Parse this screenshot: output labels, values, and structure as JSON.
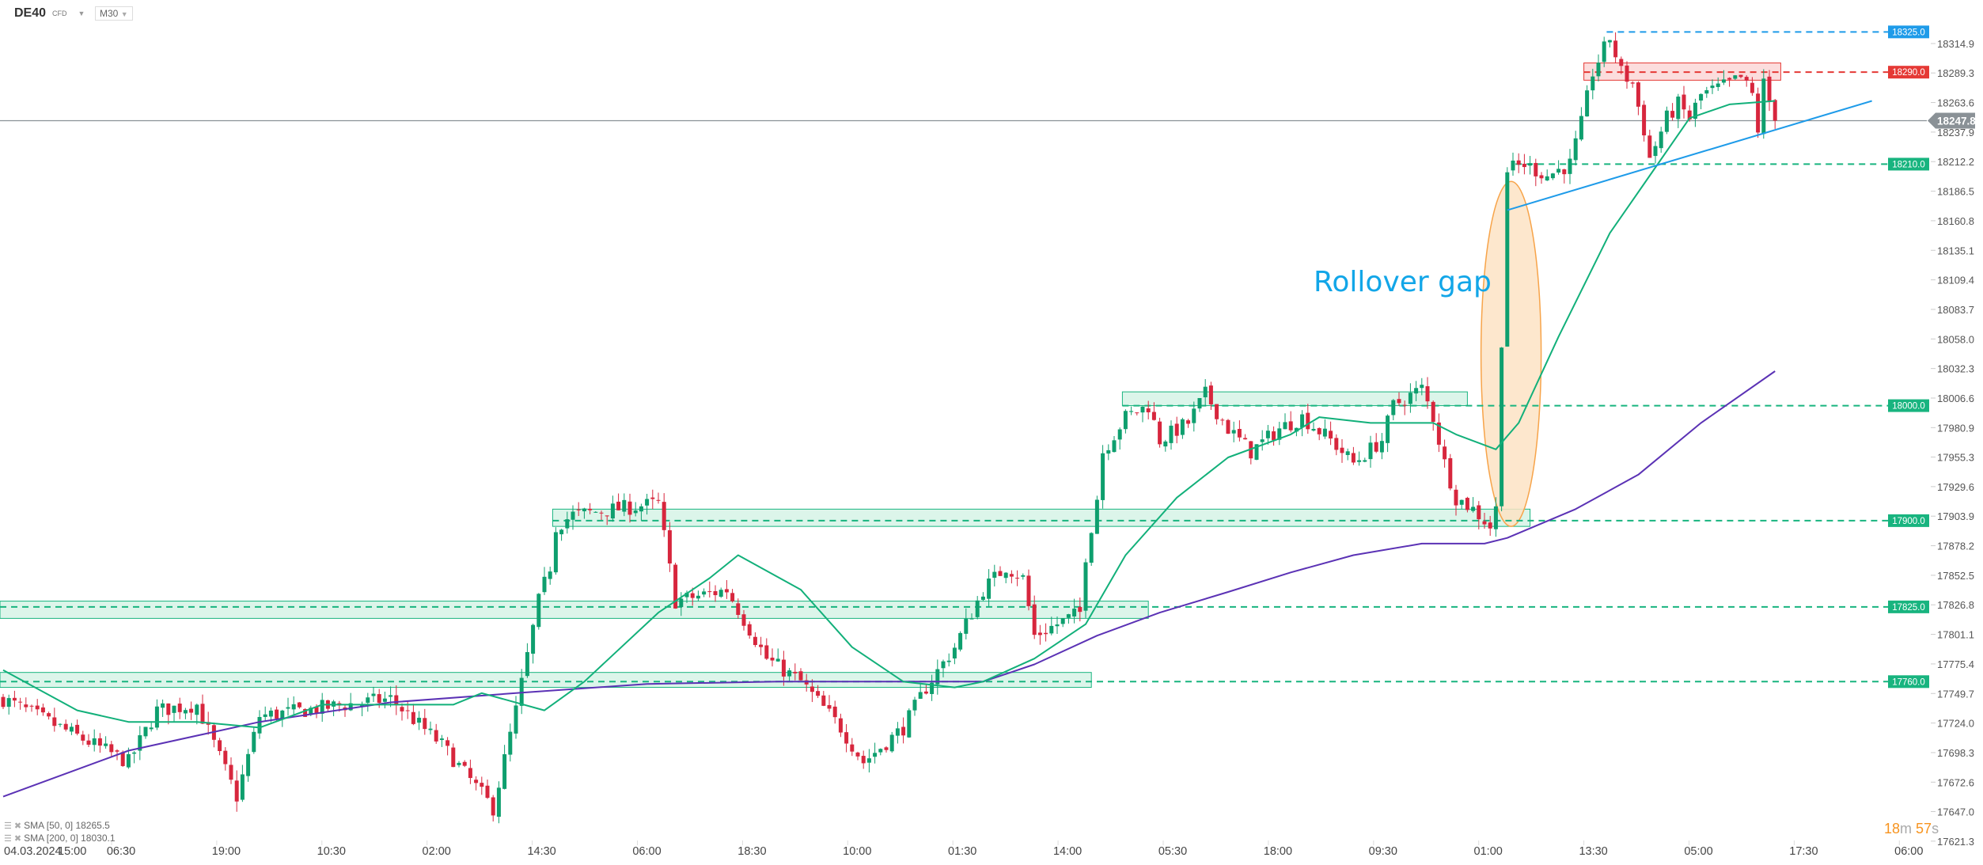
{
  "header": {
    "symbol": "DE40",
    "symbol_type": "CFD",
    "timeframe": "M30"
  },
  "legend": [
    {
      "label": "SMA [50,  0] 18265.5"
    },
    {
      "label": "SMA [200,  0] 18030.1"
    }
  ],
  "timer": {
    "minutes": "18",
    "m": "m",
    "seconds": "57",
    "s": "s"
  },
  "annotation": {
    "text": "Rollover gap",
    "color": "#12a6e8"
  },
  "colors": {
    "up": "#0e9f6e",
    "down": "#d7263d",
    "sma50": "#12b07a",
    "sma200": "#5b32b5",
    "zone": "#18b47f",
    "resistance": "#e53935",
    "high": "#1e9be9",
    "current": "#8a9196",
    "ellipse": "#f7a44a"
  },
  "chart_data": {
    "type": "candlestick",
    "instrument": "DE40",
    "timeframe": "M30",
    "y_ticks": [
      "18314.9",
      "18289.3",
      "18263.6",
      "18237.9",
      "18212.2",
      "18186.5",
      "18160.8",
      "18135.1",
      "18109.4",
      "18083.7",
      "18058.0",
      "18032.3",
      "18006.6",
      "17980.9",
      "17955.3",
      "17929.6",
      "17903.9",
      "17878.2",
      "17852.5",
      "17826.8",
      "17801.1",
      "17775.4",
      "17749.7",
      "17724.0",
      "17698.3",
      "17672.6",
      "17647.0",
      "17621.3"
    ],
    "x_start_label": {
      "date": "04.03.2024",
      "time": "15:00"
    },
    "x_ticks": [
      "06:30",
      "19:00",
      "10:30",
      "02:00",
      "14:30",
      "06:00",
      "18:30",
      "10:00",
      "01:30",
      "14:00",
      "05:30",
      "18:00",
      "09:30",
      "01:00",
      "13:30",
      "05:00",
      "17:30",
      "06:00"
    ],
    "current_price": "18247.8",
    "price_path": [
      [
        0,
        17745
      ],
      [
        22,
        17690
      ],
      [
        27,
        17735
      ],
      [
        34,
        17740
      ],
      [
        41,
        17660
      ],
      [
        45,
        17730
      ],
      [
        68,
        17745
      ],
      [
        77,
        17705
      ],
      [
        86,
        17650
      ],
      [
        90,
        17735
      ],
      [
        94,
        17830
      ],
      [
        96,
        17860
      ],
      [
        97,
        17895
      ],
      [
        100,
        17905
      ],
      [
        115,
        17915
      ],
      [
        118,
        17830
      ],
      [
        127,
        17840
      ],
      [
        134,
        17780
      ],
      [
        140,
        17760
      ],
      [
        147,
        17720
      ],
      [
        151,
        17690
      ],
      [
        158,
        17720
      ],
      [
        162,
        17755
      ],
      [
        167,
        17790
      ],
      [
        172,
        17840
      ],
      [
        176,
        17860
      ],
      [
        179,
        17850
      ],
      [
        181,
        17800
      ],
      [
        185,
        17810
      ],
      [
        189,
        17820
      ],
      [
        190,
        17870
      ],
      [
        192,
        17920
      ],
      [
        193,
        17960
      ],
      [
        197,
        17990
      ],
      [
        201,
        18000
      ],
      [
        203,
        17970
      ],
      [
        208,
        17985
      ],
      [
        211,
        18010
      ],
      [
        215,
        17980
      ],
      [
        219,
        17960
      ],
      [
        224,
        17980
      ],
      [
        228,
        17990
      ],
      [
        233,
        17970
      ],
      [
        237,
        17950
      ],
      [
        242,
        17970
      ],
      [
        244,
        18000
      ],
      [
        249,
        18015
      ],
      [
        251,
        17990
      ],
      [
        253,
        17950
      ],
      [
        255,
        17920
      ],
      [
        258,
        17910
      ],
      [
        261,
        17895
      ],
      [
        262,
        17910
      ],
      [
        264,
        18205
      ],
      [
        267,
        18210
      ],
      [
        271,
        18200
      ],
      [
        275,
        18210
      ],
      [
        277,
        18245
      ],
      [
        279,
        18290
      ],
      [
        282,
        18320
      ],
      [
        284,
        18290
      ],
      [
        286,
        18280
      ],
      [
        288,
        18240
      ],
      [
        289,
        18215
      ],
      [
        292,
        18250
      ],
      [
        294,
        18262
      ],
      [
        296,
        18250
      ],
      [
        298,
        18270
      ],
      [
        303,
        18280
      ],
      [
        305,
        18285
      ],
      [
        307,
        18270
      ],
      [
        308,
        18240
      ],
      [
        309,
        18280
      ],
      [
        311,
        18248
      ]
    ],
    "sma50": [
      [
        0,
        17770
      ],
      [
        13,
        17735
      ],
      [
        22,
        17725
      ],
      [
        34,
        17725
      ],
      [
        45,
        17720
      ],
      [
        56,
        17740
      ],
      [
        79,
        17740
      ],
      [
        84,
        17750
      ],
      [
        95,
        17735
      ],
      [
        102,
        17760
      ],
      [
        115,
        17820
      ],
      [
        124,
        17850
      ],
      [
        129,
        17870
      ],
      [
        140,
        17840
      ],
      [
        149,
        17790
      ],
      [
        158,
        17760
      ],
      [
        167,
        17755
      ],
      [
        172,
        17760
      ],
      [
        181,
        17780
      ],
      [
        190,
        17810
      ],
      [
        197,
        17870
      ],
      [
        206,
        17920
      ],
      [
        215,
        17955
      ],
      [
        226,
        17975
      ],
      [
        231,
        17990
      ],
      [
        240,
        17985
      ],
      [
        251,
        17985
      ],
      [
        255,
        17975
      ],
      [
        262,
        17962
      ],
      [
        266,
        17985
      ],
      [
        273,
        18060
      ],
      [
        282,
        18150
      ],
      [
        289,
        18200
      ],
      [
        296,
        18250
      ],
      [
        303,
        18262
      ],
      [
        311,
        18265
      ]
    ],
    "sma200": [
      [
        0,
        17660
      ],
      [
        22,
        17700
      ],
      [
        45,
        17725
      ],
      [
        68,
        17742
      ],
      [
        90,
        17750
      ],
      [
        113,
        17758
      ],
      [
        136,
        17760
      ],
      [
        158,
        17760
      ],
      [
        172,
        17760
      ],
      [
        181,
        17775
      ],
      [
        192,
        17800
      ],
      [
        203,
        17820
      ],
      [
        215,
        17838
      ],
      [
        226,
        17855
      ],
      [
        237,
        17870
      ],
      [
        249,
        17880
      ],
      [
        260,
        17880
      ],
      [
        264,
        17885
      ],
      [
        276,
        17910
      ],
      [
        287,
        17940
      ],
      [
        298,
        17985
      ],
      [
        311,
        18030
      ]
    ],
    "levels": [
      {
        "label": "18325.0",
        "value": 18325,
        "kind": "high",
        "from": 282
      },
      {
        "label": "18290.0",
        "value": 18290,
        "kind": "resistance",
        "from": 278,
        "zone": [
          18283,
          18298
        ],
        "zone_to": 312
      },
      {
        "label": "18210.0",
        "value": 18210,
        "kind": "support",
        "from": 266
      },
      {
        "label": "18000.0",
        "value": 18000,
        "kind": "support",
        "from": 197,
        "zone": [
          18000,
          18012
        ],
        "zone_to": 257
      },
      {
        "label": "17900.0",
        "value": 17900,
        "kind": "support",
        "from": 97,
        "zone": [
          17895,
          17910
        ],
        "zone_to": 268
      },
      {
        "label": "17825.0",
        "value": 17825,
        "kind": "support",
        "from": 0,
        "zone": [
          17815,
          17830
        ],
        "zone_to": 201
      },
      {
        "label": "17760.0",
        "value": 17760,
        "kind": "support",
        "from": 0,
        "zone": [
          17755,
          17768
        ],
        "zone_to": 191
      }
    ],
    "trendline": [
      [
        264,
        18170
      ],
      [
        328,
        18265
      ]
    ],
    "gap_ellipse": {
      "center_bar": 263,
      "top": 18195,
      "bottom": 17895
    }
  }
}
